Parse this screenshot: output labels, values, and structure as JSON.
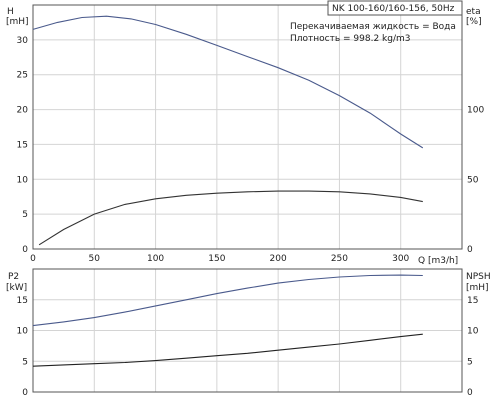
{
  "chart_data": [
    {
      "type": "line",
      "title": "NK 100-160/160-156, 50Hz",
      "annotations": [
        "Перекачиваемая жидкость = Вода",
        "Плотность = 998.2 kg/m3"
      ],
      "xlabel": "Q [m3/h]",
      "left_axis": {
        "label_top": "H",
        "label_bottom": "[mH]"
      },
      "right_axis": {
        "label_top": "eta",
        "label_bottom": "[%]"
      },
      "xlim": [
        0,
        350
      ],
      "x_ticks": [
        0,
        50,
        100,
        150,
        200,
        250,
        300
      ],
      "ylim": [
        0,
        35
      ],
      "y_ticks": [
        0,
        5,
        10,
        15,
        20,
        25,
        30
      ],
      "y2lim": [
        0,
        175
      ],
      "y2_ticks": [
        0,
        50,
        100
      ],
      "grid": true,
      "series": [
        {
          "name": "H",
          "axis": "left",
          "color": "#4a5a8c",
          "x": [
            0,
            20,
            40,
            60,
            80,
            100,
            125,
            150,
            175,
            200,
            225,
            250,
            275,
            300,
            318
          ],
          "y": [
            31.5,
            32.5,
            33.2,
            33.4,
            33.0,
            32.2,
            30.8,
            29.2,
            27.6,
            26.0,
            24.2,
            22.0,
            19.5,
            16.5,
            14.5
          ]
        },
        {
          "name": "eta",
          "axis": "right",
          "color": "#333333",
          "x": [
            5,
            25,
            50,
            75,
            100,
            125,
            150,
            175,
            200,
            225,
            250,
            275,
            300,
            318
          ],
          "y": [
            3,
            14,
            25,
            32,
            36,
            38.5,
            40,
            41,
            41.5,
            41.5,
            41,
            39.5,
            37,
            34
          ]
        }
      ]
    },
    {
      "type": "line",
      "left_axis": {
        "label_top": "P2",
        "label_bottom": "[kW]"
      },
      "right_axis": {
        "label_top": "NPSH",
        "label_bottom": "[mH]"
      },
      "xlim": [
        0,
        350
      ],
      "ylim": [
        0,
        20
      ],
      "y_ticks": [
        0,
        5,
        10,
        15
      ],
      "y2lim": [
        0,
        20
      ],
      "y2_ticks": [
        0,
        5,
        10,
        15
      ],
      "grid": true,
      "series": [
        {
          "name": "P2",
          "axis": "left",
          "color": "#4a5a8c",
          "x": [
            0,
            25,
            50,
            75,
            100,
            125,
            150,
            175,
            200,
            225,
            250,
            275,
            300,
            318
          ],
          "y": [
            10.8,
            11.4,
            12.1,
            13.0,
            14.0,
            15.0,
            16.0,
            16.9,
            17.7,
            18.3,
            18.7,
            18.95,
            19.0,
            18.95
          ]
        },
        {
          "name": "NPSH",
          "axis": "right",
          "color": "#222222",
          "x": [
            0,
            25,
            50,
            75,
            100,
            125,
            150,
            175,
            200,
            225,
            250,
            275,
            300,
            318
          ],
          "y": [
            4.2,
            4.4,
            4.6,
            4.8,
            5.1,
            5.5,
            5.9,
            6.3,
            6.8,
            7.3,
            7.8,
            8.4,
            9.0,
            9.4
          ]
        }
      ]
    }
  ]
}
